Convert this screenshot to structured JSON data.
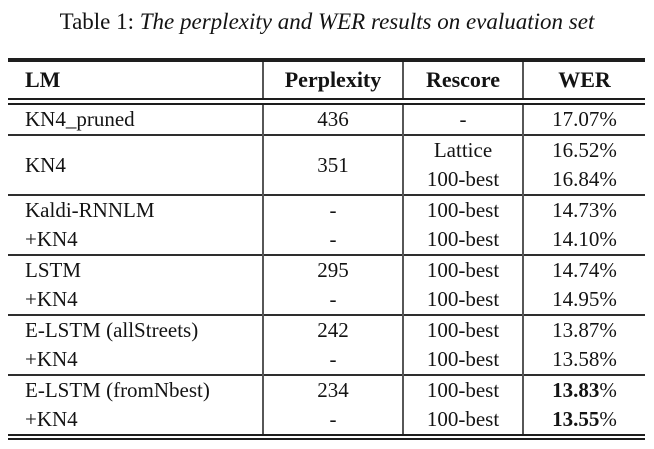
{
  "caption": {
    "label": "Table 1:",
    "title": "The perplexity and WER results on evaluation set"
  },
  "colors": {
    "text": "#131313",
    "rule": "#1e1e1e",
    "column_separator": "#575757",
    "background": "#ffffff"
  },
  "table": {
    "columns": [
      "LM",
      "Perplexity",
      "Rescore",
      "WER"
    ],
    "rows": [
      {
        "lm": "KN4_pruned",
        "perplexity": "436",
        "rescore": "-",
        "wer": "17.07",
        "unit": "%",
        "wer_bold": false
      },
      {
        "lm": "KN4",
        "perplexity": "351",
        "rescore": "Lattice",
        "wer": "16.52",
        "unit": "%",
        "wer_bold": false
      },
      {
        "rescore": "100-best",
        "wer": "16.84",
        "unit": "%",
        "wer_bold": false
      },
      {
        "lm": "Kaldi-RNNLM",
        "perplexity": "-",
        "rescore": "100-best",
        "wer": "14.73",
        "unit": "%",
        "wer_bold": false
      },
      {
        "lm": "+KN4",
        "perplexity": "-",
        "rescore": "100-best",
        "wer": "14.10",
        "unit": "%",
        "wer_bold": false
      },
      {
        "lm": "LSTM",
        "perplexity": "295",
        "rescore": "100-best",
        "wer": "14.74",
        "unit": "%",
        "wer_bold": false
      },
      {
        "lm": "+KN4",
        "perplexity": "-",
        "rescore": "100-best",
        "wer": "14.95",
        "unit": "%",
        "wer_bold": false
      },
      {
        "lm": "E-LSTM (allStreets)",
        "perplexity": "242",
        "rescore": "100-best",
        "wer": "13.87",
        "unit": "%",
        "wer_bold": false
      },
      {
        "lm": "+KN4",
        "perplexity": "-",
        "rescore": "100-best",
        "wer": "13.58",
        "unit": "%",
        "wer_bold": false
      },
      {
        "lm": "E-LSTM (fromNbest)",
        "perplexity": "234",
        "rescore": "100-best",
        "wer": "13.83",
        "unit": "%",
        "wer_bold": true
      },
      {
        "lm": "+KN4",
        "perplexity": "-",
        "rescore": "100-best",
        "wer": "13.55",
        "unit": "%",
        "wer_bold": true
      }
    ]
  }
}
